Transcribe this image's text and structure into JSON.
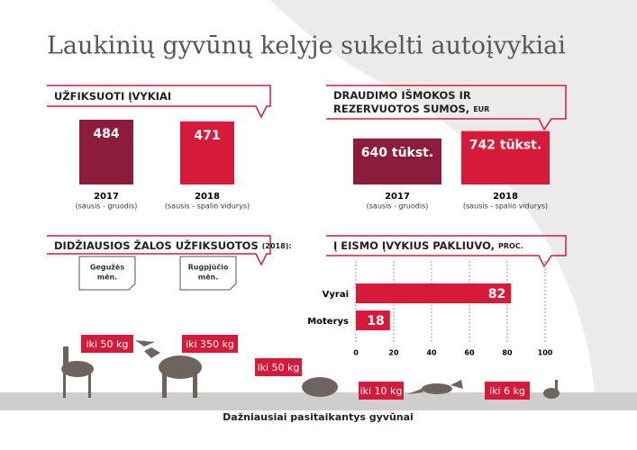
{
  "title": "Laukinių gyvūnų kelyje sukelti autoįvykiai",
  "chart_data": [
    {
      "type": "bar",
      "title_lines": [
        "UŽFIKSUOTI ĮVYKIAI"
      ],
      "categories": [
        "2017",
        "2018"
      ],
      "category_notes": [
        "(sausis - gruodis)",
        "(sausis - spalio vidurys)"
      ],
      "values": [
        484,
        471
      ],
      "colors": [
        "#8c1c3c",
        "#d7193a"
      ]
    },
    {
      "type": "bar",
      "title_lines": [
        "DRAUDIMO IŠMOKOS IR",
        "REZERVUOTOS SUMOS,"
      ],
      "unit": "EUR",
      "categories": [
        "2017",
        "2018"
      ],
      "category_notes": [
        "(sausis - gruodis)",
        "(sausis - spalio vidurys)"
      ],
      "values": [
        640,
        742
      ],
      "value_labels": [
        "640 tūkst.",
        "742 tūkst."
      ],
      "colors": [
        "#8c1c3c",
        "#d7193a"
      ]
    },
    {
      "type": "hbar",
      "title_lines": [
        "Į EISMO ĮVYKIUS PAKLIUVO,"
      ],
      "unit": "PROC.",
      "categories": [
        "Vyrai",
        "Moterys"
      ],
      "values": [
        82,
        18
      ],
      "color": "#d7193a",
      "xlim": [
        0,
        100
      ],
      "xticks": [
        0,
        20,
        40,
        60,
        80,
        100
      ],
      "grid": true
    }
  ],
  "damage": {
    "title": "DIDŽIAUSIOS ŽALOS UŽFIKSUOTOS",
    "year": "(2018):",
    "months": [
      [
        "Gegužės",
        "mėn."
      ],
      [
        "Rugpjūčio",
        "mėn."
      ]
    ]
  },
  "animals": {
    "title": "Dažniausiai pasitaikantys gyvūnai",
    "weights": [
      "iki 50 kg",
      "iki 350 kg",
      "iki 50 kg",
      "iki 10 kg",
      "iki 6 kg"
    ]
  }
}
